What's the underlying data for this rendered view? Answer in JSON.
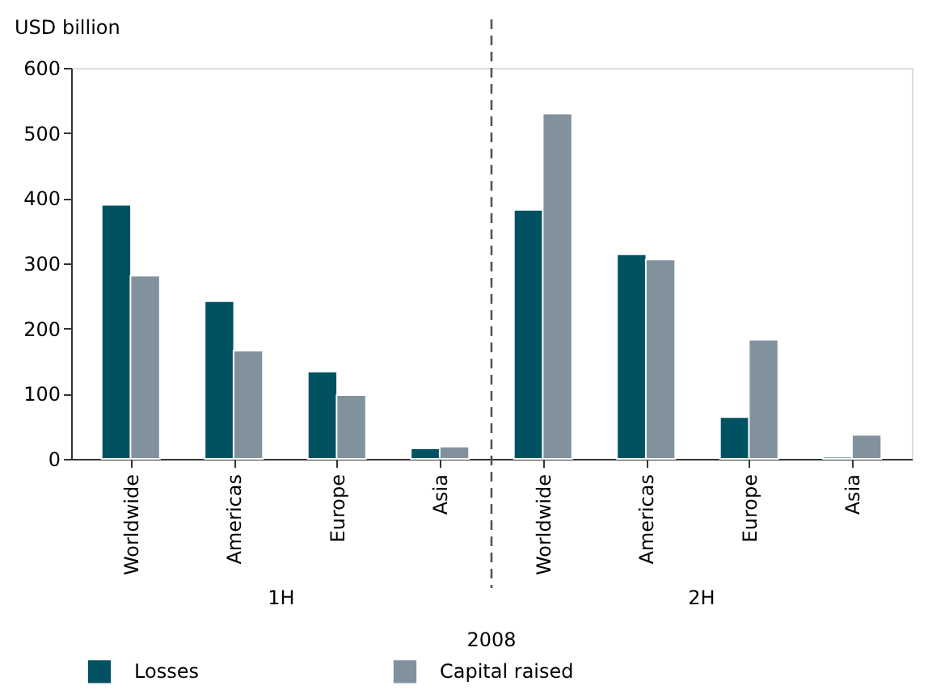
{
  "chart_data": {
    "type": "bar",
    "ylabel": "USD billion",
    "categories": [
      "Worldwide",
      "Americas",
      "Europe",
      "Asia",
      "Worldwide",
      "Americas",
      "Europe",
      "Asia"
    ],
    "series": [
      {
        "name": "Losses",
        "color": "#005262",
        "values": [
          390,
          242,
          134,
          16,
          382,
          314,
          64,
          3
        ]
      },
      {
        "name": "Capital raised",
        "color": "#81929d",
        "values": [
          281,
          166,
          98,
          19,
          530,
          306,
          183,
          37
        ]
      }
    ],
    "ylim": [
      0,
      600
    ],
    "yticks": [
      0,
      100,
      200,
      300,
      400,
      500,
      600
    ],
    "legend": "bottom",
    "annotations": [
      "1H",
      "2H",
      "2008"
    ]
  }
}
